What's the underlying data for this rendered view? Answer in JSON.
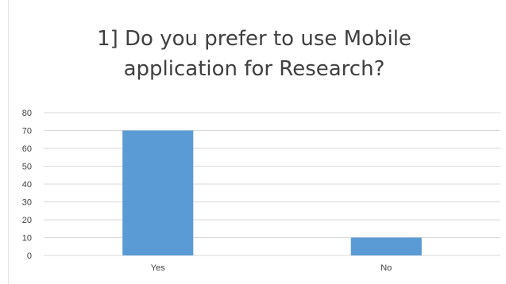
{
  "chart_data": {
    "type": "bar",
    "title_lines": [
      "1] Do you prefer to use Mobile",
      "application for Research?"
    ],
    "categories": [
      "Yes",
      "No"
    ],
    "values": [
      70,
      10
    ],
    "ylim": [
      0,
      80
    ],
    "yticks": [
      "0",
      "10",
      "20",
      "30",
      "40",
      "50",
      "60",
      "70",
      "80"
    ],
    "grid": true,
    "bar_color": "#5b9bd5",
    "grid_color": "#d9d9d9",
    "text_color": "#404040"
  }
}
